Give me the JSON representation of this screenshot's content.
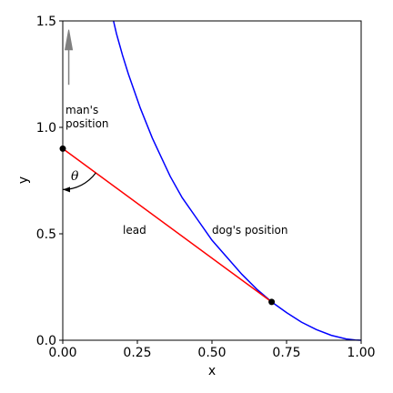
{
  "chart_data": {
    "type": "line",
    "title": "",
    "xlabel": "x",
    "ylabel": "y",
    "xlim": [
      0,
      1
    ],
    "ylim": [
      0,
      1.5
    ],
    "xticks": [
      {
        "value": 0,
        "label": "0.00"
      },
      {
        "value": 0.25,
        "label": "0.25"
      },
      {
        "value": 0.5,
        "label": "0.50"
      },
      {
        "value": 0.75,
        "label": "0.75"
      },
      {
        "value": 1,
        "label": "1.00"
      }
    ],
    "yticks": [
      {
        "value": 0,
        "label": "0.0"
      },
      {
        "value": 0.5,
        "label": "0.5"
      },
      {
        "value": 1,
        "label": "1.0"
      },
      {
        "value": 1.5,
        "label": "1.5"
      }
    ],
    "grid": false,
    "series": [
      {
        "kind": "tractrix-curve",
        "color": "#0000ff",
        "x": [
          0.17,
          0.18,
          0.19,
          0.2,
          0.22,
          0.24,
          0.26,
          0.28,
          0.3,
          0.33,
          0.36,
          0.4,
          0.45,
          0.5,
          0.55,
          0.6,
          0.65,
          0.7,
          0.75,
          0.8,
          0.85,
          0.9,
          0.95,
          0.98,
          1.0
        ],
        "y": [
          1.5,
          1.44,
          1.39,
          1.34,
          1.25,
          1.17,
          1.09,
          1.02,
          0.95,
          0.86,
          0.77,
          0.67,
          0.57,
          0.47,
          0.39,
          0.31,
          0.24,
          0.18,
          0.13,
          0.085,
          0.05,
          0.023,
          0.006,
          0.001,
          0.0
        ]
      },
      {
        "kind": "lead-line",
        "color": "#ff0000",
        "x": [
          0.0,
          0.7
        ],
        "y": [
          0.9,
          0.18
        ]
      }
    ],
    "points": [
      {
        "name": "man-position-point",
        "x": 0.0,
        "y": 0.9
      },
      {
        "name": "dog-position-point",
        "x": 0.7,
        "y": 0.18
      }
    ],
    "annotations": {
      "man": {
        "label_line1": "man's",
        "label_line2": "position",
        "x": 0.01,
        "y": 1.05
      },
      "lead": {
        "label": "lead",
        "x": 0.2,
        "y": 0.5
      },
      "dog": {
        "label": "dog's position",
        "x": 0.5,
        "y": 0.5
      },
      "theta": {
        "label": "θ",
        "x": 0.03,
        "y": 0.77
      },
      "arrow": {
        "color": "#808080",
        "x": 0.02,
        "y_from": 1.2,
        "y_to": 1.45
      }
    }
  }
}
